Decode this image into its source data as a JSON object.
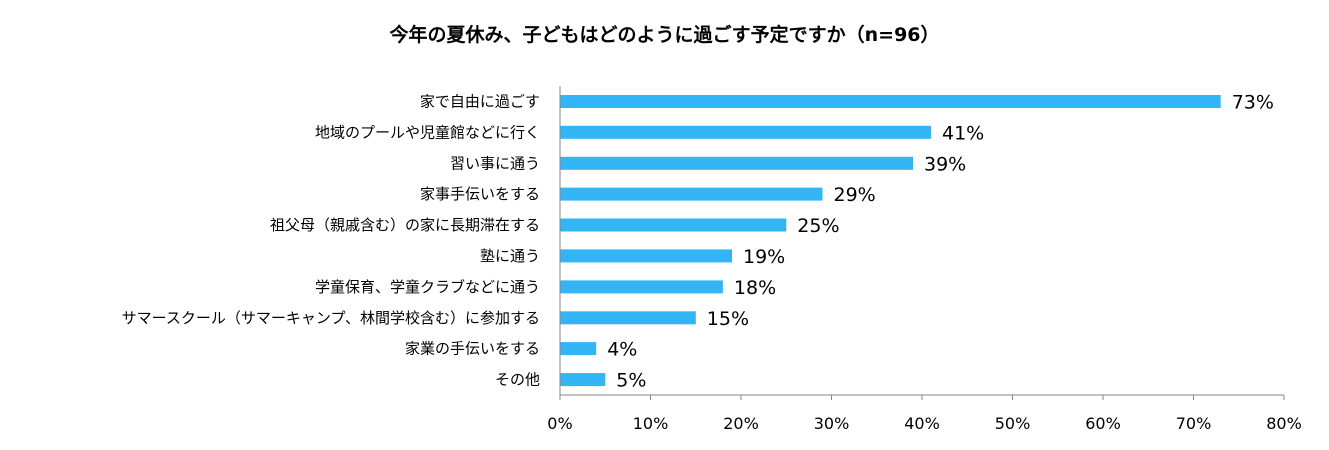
{
  "chart_data": {
    "type": "bar",
    "orientation": "horizontal",
    "title": "今年の夏休み、子どもはどのように過ごす予定ですか（n=96）",
    "categories": [
      "家で自由に過ごす",
      "地域のプールや児童館などに行く",
      "習い事に通う",
      "家事手伝いをする",
      "祖父母（親戚含む）の家に長期滞在する",
      "塾に通う",
      "学童保育、学童クラブなどに通う",
      "サマースクール（サマーキャンプ、林間学校含む）に参加する",
      "家業の手伝いをする",
      "その他"
    ],
    "values": [
      73,
      41,
      39,
      29,
      25,
      19,
      18,
      15,
      4,
      5
    ],
    "value_labels": [
      "73%",
      "41%",
      "39%",
      "29%",
      "25%",
      "19%",
      "18%",
      "15%",
      "4%",
      "5%"
    ],
    "x_ticks": [
      0,
      10,
      20,
      30,
      40,
      50,
      60,
      70,
      80
    ],
    "x_tick_labels": [
      "0%",
      "10%",
      "20%",
      "30%",
      "40%",
      "50%",
      "60%",
      "70%",
      "80%"
    ],
    "xlim": [
      0,
      80
    ],
    "xlabel": "",
    "ylabel": "",
    "grid": false,
    "bar_color": "#33B5F5"
  }
}
